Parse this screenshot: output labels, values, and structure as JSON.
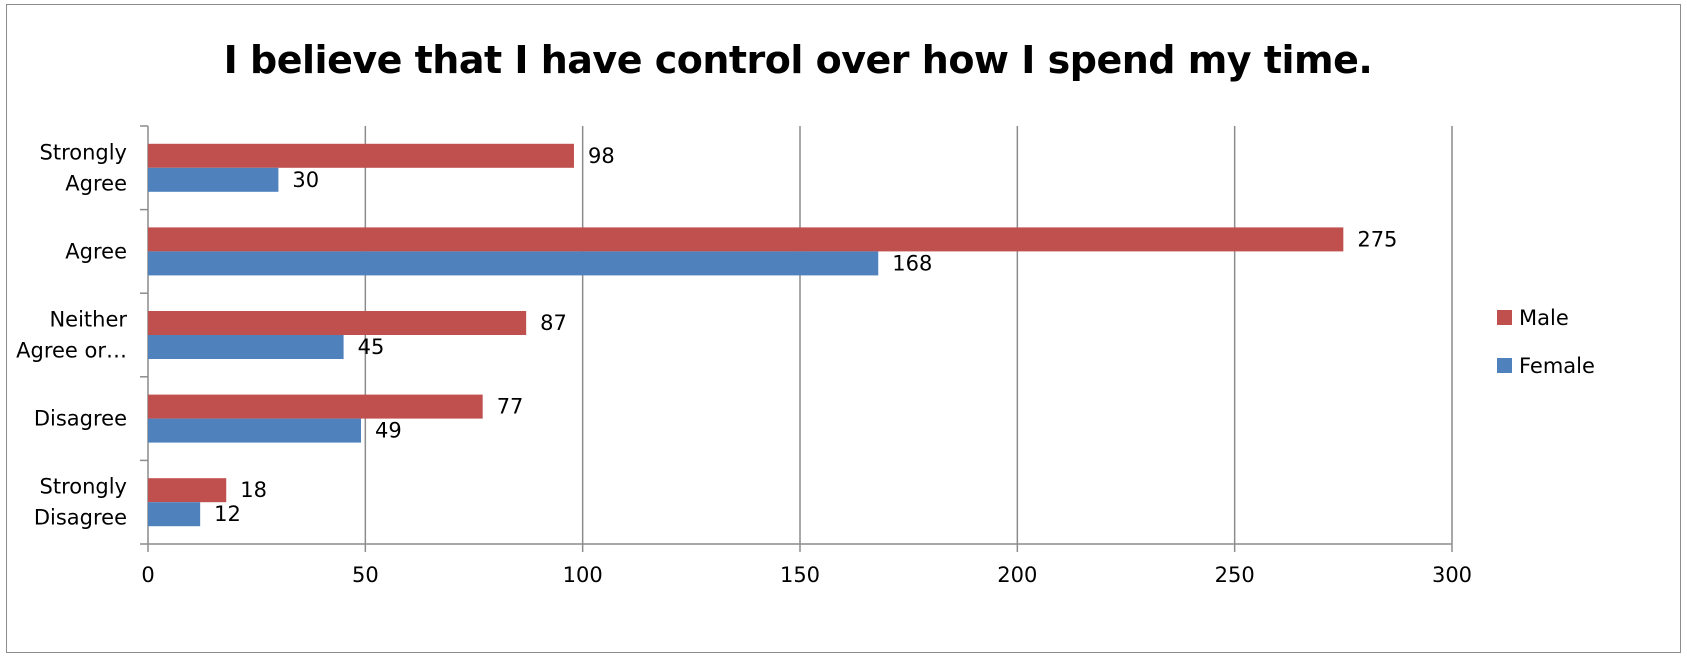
{
  "chart_data": {
    "type": "bar",
    "orientation": "horizontal",
    "title": "I believe that I have control over how I spend my time.",
    "categories": [
      [
        "Strongly",
        "Agree"
      ],
      [
        "Agree"
      ],
      [
        "Neither",
        "Agree or…"
      ],
      [
        "Disagree"
      ],
      [
        "Strongly",
        "Disagree"
      ]
    ],
    "series": [
      {
        "name": "Male",
        "color": "#c0504d",
        "values": [
          98,
          275,
          87,
          77,
          18
        ]
      },
      {
        "name": "Female",
        "color": "#4f81bd",
        "values": [
          30,
          168,
          45,
          49,
          12
        ]
      }
    ],
    "xlim": [
      0,
      300
    ],
    "xticks": [
      0,
      50,
      100,
      150,
      200,
      250,
      300
    ],
    "grid": true,
    "legend_position": "right"
  }
}
